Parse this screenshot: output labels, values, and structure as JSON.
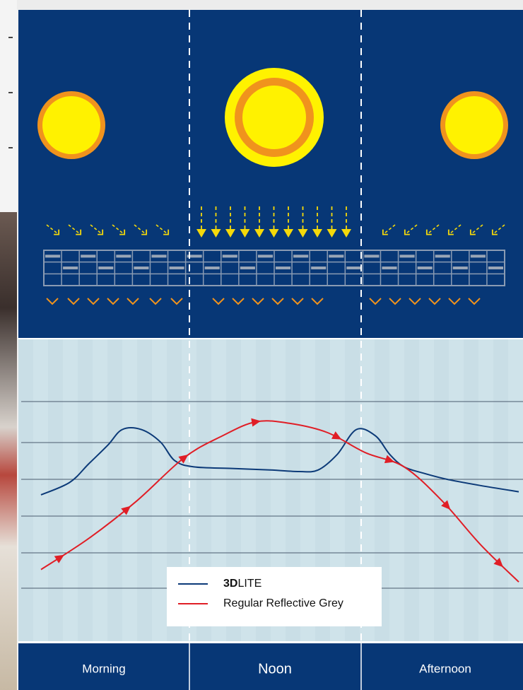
{
  "colors": {
    "panel_bg": "#073776",
    "chart_bg": "#cfe3ea",
    "sun_inner": "#fff200",
    "sun_ring": "#f0931d",
    "arrow_ray": "#f5d90a",
    "arrow_out": "#f0931d",
    "line_3dlite": "#0c3a78",
    "line_grey": "#e01e26",
    "divider": "#ffffff"
  },
  "icons": {
    "sun": "sun-icon",
    "ray": "sun-ray-arrow-icon",
    "reflection": "reflection-chevron-icon",
    "panel": "solar-panel-grid-icon"
  },
  "periods": [
    {
      "label": "Morning",
      "sun": "small",
      "rays": "diagonal-from-left"
    },
    {
      "label": "Noon",
      "sun": "large",
      "rays": "vertical"
    },
    {
      "label": "Afternoon",
      "sun": "small",
      "rays": "diagonal-from-right"
    }
  ],
  "chart_data": {
    "type": "line",
    "title": "",
    "xlabel": "",
    "ylabel": "",
    "categories": [
      "Morning",
      "Noon",
      "Afternoon"
    ],
    "x_range": [
      0,
      100
    ],
    "y_range": [
      0,
      6
    ],
    "grid": "horizontal",
    "legend_placement": "bottom-center",
    "series": [
      {
        "name": "3DLITE",
        "color": "#0c3a78",
        "markers": false,
        "x": [
          0,
          6,
          10,
          14,
          17,
          21,
          25,
          28,
          32,
          40,
          48,
          54,
          58,
          62,
          66,
          70,
          73,
          76,
          80,
          85,
          92,
          100
        ],
        "y": [
          3.0,
          3.4,
          4.0,
          4.6,
          5.1,
          5.1,
          4.7,
          4.1,
          3.9,
          3.85,
          3.8,
          3.75,
          3.8,
          4.3,
          5.1,
          4.9,
          4.3,
          3.9,
          3.7,
          3.5,
          3.3,
          3.1
        ]
      },
      {
        "name": "Regular Reflective Grey",
        "color": "#e01e26",
        "markers": "arrows",
        "x": [
          0,
          10,
          20,
          30,
          38,
          45,
          52,
          60,
          68,
          76,
          84,
          92,
          100
        ],
        "y": [
          0.6,
          1.6,
          2.8,
          4.2,
          4.9,
          5.35,
          5.3,
          5.0,
          4.35,
          3.9,
          2.8,
          1.4,
          0.2
        ]
      }
    ],
    "arrow_marker_x": [
      4,
      18,
      30,
      45,
      62,
      73,
      85,
      96
    ]
  }
}
